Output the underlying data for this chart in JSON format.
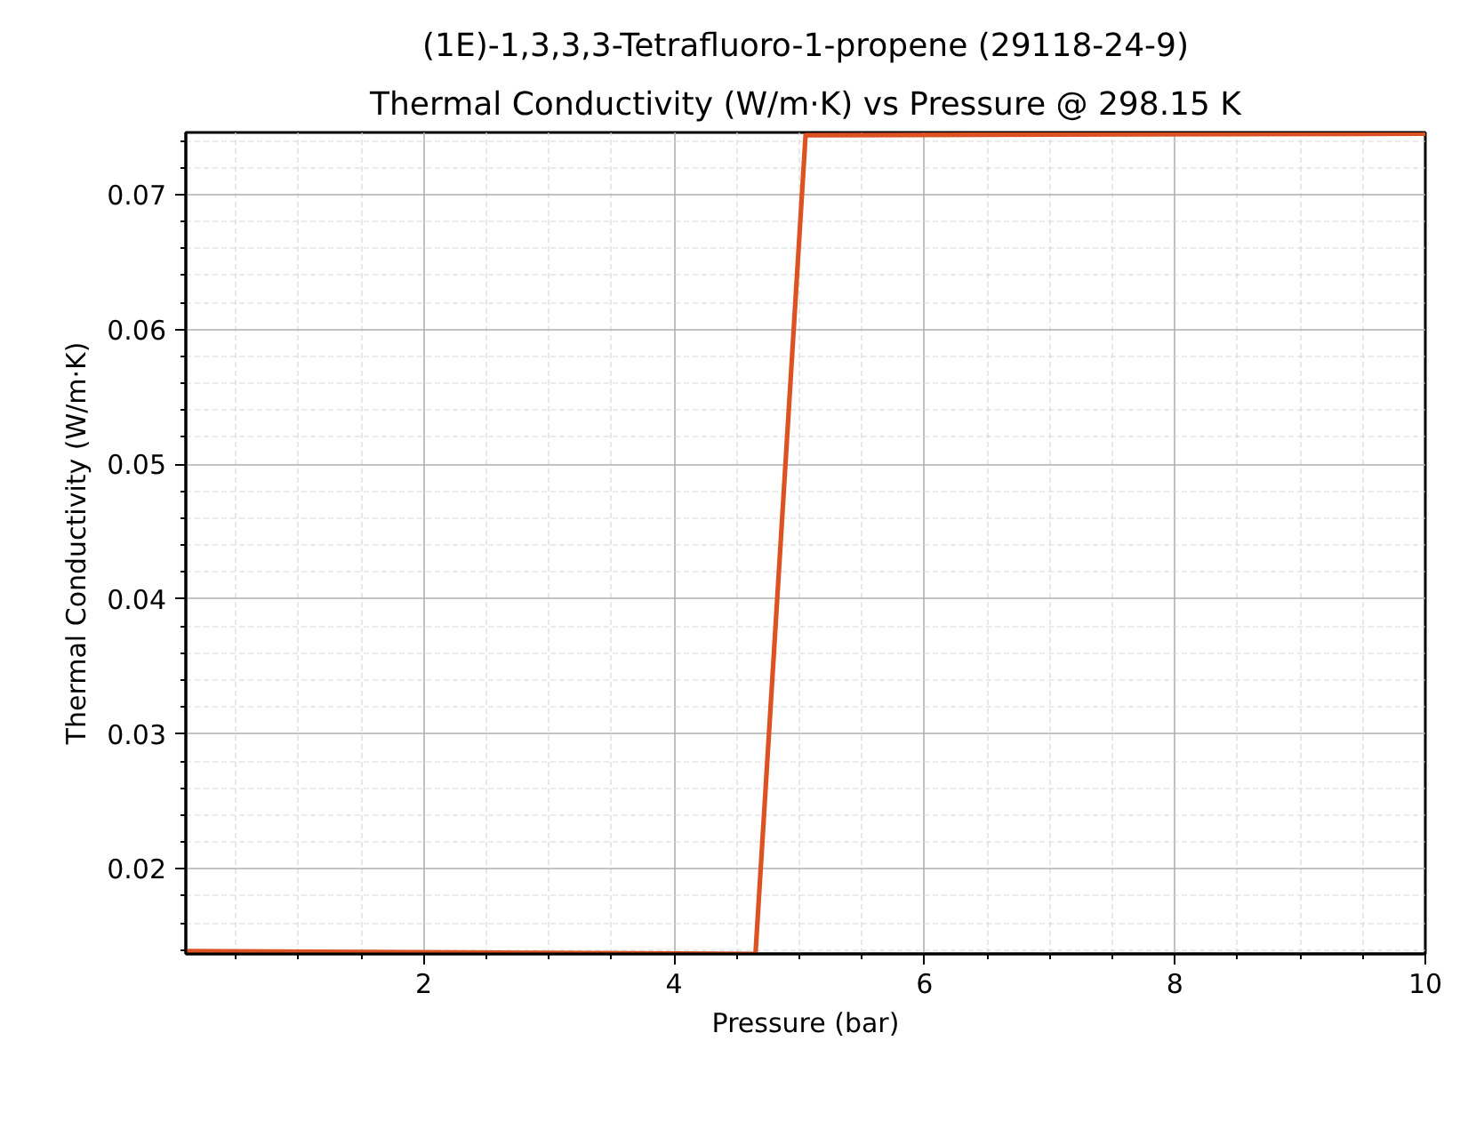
{
  "chart_data": {
    "type": "line",
    "title": "(1E)-1,3,3,3-Tetrafluoro-1-propene (29118-24-9)",
    "subtitle": "Thermal Conductivity (W/m·K) vs Pressure @ 298.15 K",
    "xlabel": "Pressure (bar)",
    "ylabel": "Thermal Conductivity (W/m·K)",
    "x": [
      0.1,
      4.65,
      5.05,
      10
    ],
    "series": [
      {
        "color": "#dd5222",
        "values": [
          0.0139,
          0.0137,
          0.0744,
          0.0745
        ]
      }
    ],
    "xlim": [
      0.1,
      10
    ],
    "ylim": [
      0.0137,
      0.0746
    ],
    "xticks": [
      {
        "value": 0.5,
        "label": null
      },
      {
        "value": 1,
        "label": null
      },
      {
        "value": 1.5,
        "label": null
      },
      2,
      {
        "value": 2.5,
        "label": null
      },
      {
        "value": 3,
        "label": null
      },
      {
        "value": 3.5,
        "label": null
      },
      4,
      {
        "value": 4.5,
        "label": null
      },
      {
        "value": 5,
        "label": null
      },
      {
        "value": 5.5,
        "label": null
      },
      6,
      {
        "value": 6.5,
        "label": null
      },
      {
        "value": 7,
        "label": null
      },
      {
        "value": 7.5,
        "label": null
      },
      8,
      {
        "value": 8.5,
        "label": null
      },
      {
        "value": 9,
        "label": null
      },
      {
        "value": 9.5,
        "label": null
      },
      10
    ],
    "yticks": [
      {
        "value": 0.014,
        "label": null
      },
      {
        "value": 0.016,
        "label": null
      },
      {
        "value": 0.018,
        "label": null
      },
      0.02,
      {
        "value": 0.022,
        "label": null
      },
      {
        "value": 0.024,
        "label": null
      },
      {
        "value": 0.026,
        "label": null
      },
      {
        "value": 0.028,
        "label": null
      },
      0.03,
      {
        "value": 0.032,
        "label": null
      },
      {
        "value": 0.034,
        "label": null
      },
      {
        "value": 0.036,
        "label": null
      },
      {
        "value": 0.038,
        "label": null
      },
      0.04,
      {
        "value": 0.042,
        "label": null
      },
      {
        "value": 0.044,
        "label": null
      },
      {
        "value": 0.046,
        "label": null
      },
      {
        "value": 0.048,
        "label": null
      },
      0.05,
      {
        "value": 0.052,
        "label": null
      },
      {
        "value": 0.054,
        "label": null
      },
      {
        "value": 0.056,
        "label": null
      },
      {
        "value": 0.058,
        "label": null
      },
      0.06,
      {
        "value": 0.062,
        "label": null
      },
      {
        "value": 0.064,
        "label": null
      },
      {
        "value": 0.066,
        "label": null
      },
      {
        "value": 0.068,
        "label": null
      },
      0.07,
      {
        "value": 0.072,
        "label": null
      },
      {
        "value": 0.074,
        "label": null
      }
    ],
    "grid": true
  }
}
